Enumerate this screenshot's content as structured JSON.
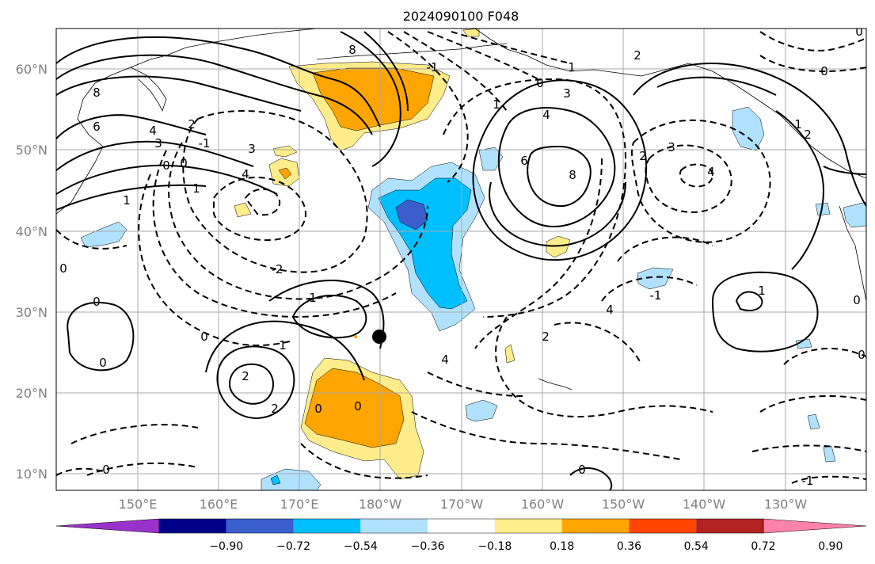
{
  "title": "2024090100 F048",
  "lat_ticks": [
    "60°N",
    "50°N",
    "40°N",
    "30°N",
    "20°N",
    "10°N"
  ],
  "lon_ticks": [
    "150°E",
    "160°E",
    "170°E",
    "180°W",
    "170°W",
    "160°W",
    "150°W",
    "140°W",
    "130°W"
  ],
  "colorbar": {
    "colors": [
      "#9932cc",
      "#00008b",
      "#3a5fcd",
      "#00bfff",
      "#b0e2ff",
      "#ffffff",
      "#ffec8b",
      "#ffa500",
      "#ff4500",
      "#b22222",
      "#ff82ab"
    ],
    "labels": [
      "−0.90",
      "−0.72",
      "−0.54",
      "−0.36",
      "−0.18",
      "0.18",
      "0.36",
      "0.54",
      "0.72",
      "0.90"
    ]
  },
  "contour_labels": [
    "8",
    "6",
    "4",
    "3",
    "2",
    "0",
    "0",
    "1",
    "1",
    "-1",
    "2",
    "3",
    "4",
    "-2",
    "-1",
    "2",
    "0",
    "1",
    "1",
    "2",
    "2",
    "0",
    "0",
    "0",
    "8",
    "6",
    "4",
    "2",
    "3",
    "4",
    "0",
    "2",
    "1",
    "1",
    "1",
    "0",
    "0",
    "0",
    "-1",
    "0",
    "1"
  ],
  "markers": {
    "storm_center": "storm-center-marker"
  }
}
